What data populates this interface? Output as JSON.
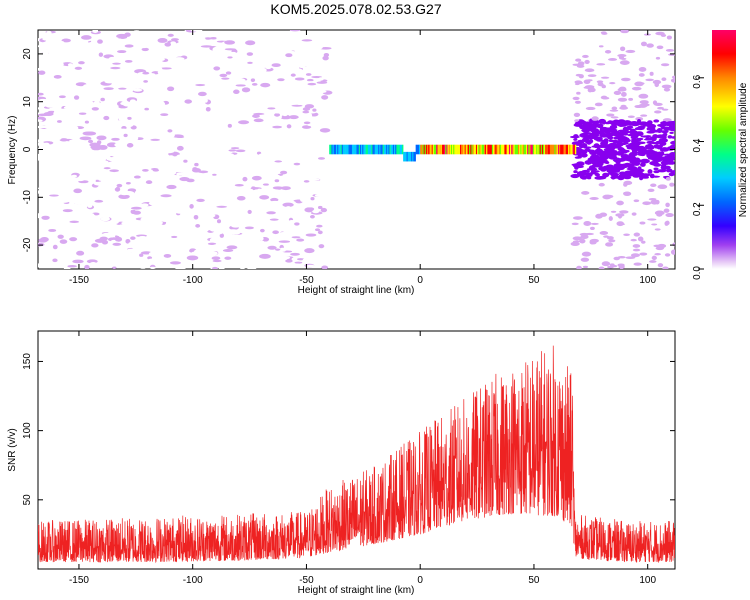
{
  "title": "KOM5.2025.078.02.53.G27",
  "chart_data": [
    {
      "type": "heatmap",
      "xlabel": "Height of straight line (km)",
      "ylabel": "Frequency (Hz)",
      "xlim": [
        -168,
        112
      ],
      "ylim": [
        -25,
        25
      ],
      "xticks": [
        -150,
        -100,
        -50,
        0,
        50,
        100
      ],
      "yticks": [
        -20,
        -10,
        0,
        10,
        20
      ],
      "colorbar": {
        "label": "Normalized spectral amplitude",
        "range": [
          0,
          0.75
        ],
        "ticks": [
          "0.0",
          "0.2",
          "0.4",
          "0.6"
        ],
        "colors": [
          "#ffffff",
          "#d8a8f0",
          "#8800ee",
          "#3300ff",
          "#0066ff",
          "#00ccff",
          "#00ff88",
          "#66ff00",
          "#ffff00",
          "#ff8800",
          "#ff0000",
          "#ff0066"
        ]
      },
      "regions": [
        {
          "name": "noise-left",
          "x": [
            -168,
            -40
          ],
          "f": [
            -25,
            25
          ],
          "level": 0.05
        },
        {
          "name": "signal-line",
          "x": [
            -40,
            68
          ],
          "f": [
            -1,
            1
          ],
          "level": 0.7
        },
        {
          "name": "noise-right",
          "x": [
            68,
            112
          ],
          "f": [
            -6,
            6
          ],
          "level": 0.1
        }
      ]
    },
    {
      "type": "line",
      "xlabel": "Height of straight line (km)",
      "ylabel": "SNR (v/v)",
      "xlim": [
        -168,
        112
      ],
      "ylim": [
        0,
        172
      ],
      "xticks": [
        -150,
        -100,
        -50,
        0,
        50,
        100
      ],
      "yticks": [
        50,
        100,
        150
      ],
      "color": "#ee2222",
      "envelope": {
        "x": [
          -168,
          -120,
          -80,
          -50,
          -40,
          -20,
          0,
          20,
          40,
          60,
          67,
          68,
          90,
          112
        ],
        "y_low": [
          5,
          5,
          6,
          8,
          12,
          18,
          25,
          35,
          40,
          38,
          30,
          8,
          5,
          5
        ],
        "y_high": [
          35,
          38,
          40,
          42,
          60,
          75,
          100,
          125,
          150,
          165,
          140,
          40,
          35,
          35
        ]
      }
    }
  ]
}
